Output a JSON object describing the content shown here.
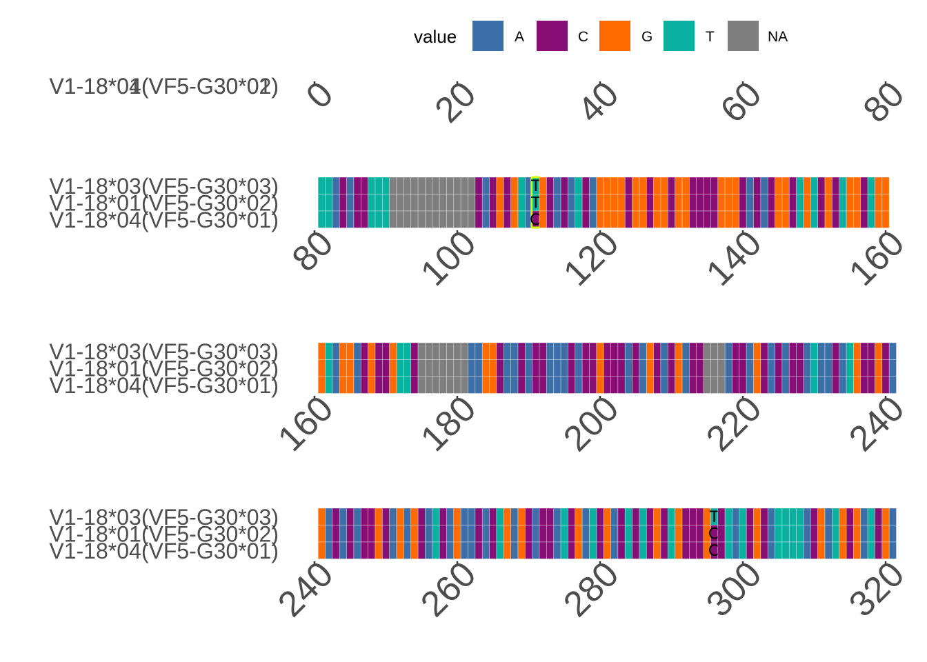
{
  "legend": {
    "title": "value",
    "items": [
      {
        "label": "A",
        "color": "#3C6EA8"
      },
      {
        "label": "C",
        "color": "#870E75"
      },
      {
        "label": "G",
        "color": "#FF6B00"
      },
      {
        "label": "T",
        "color": "#0AB1A0"
      },
      {
        "label": "NA",
        "color": "#7F7F7F"
      }
    ]
  },
  "chart_data": {
    "type": "heatmap",
    "rows": [
      "V1-18*03(VF5-G30*03)",
      "V1-18*01(VF5-G30*02)",
      "V1-18*04(VF5-G30*01)"
    ],
    "first_panel_rows": [
      "V1-18*01(VF5-G30*02)",
      "V1-18*04(VF5-G30*01)"
    ],
    "panels": [
      {
        "xlim": [
          0,
          80
        ],
        "ticks": [
          0,
          20,
          40,
          60,
          80
        ],
        "sequence": ""
      },
      {
        "xlim": [
          80,
          160
        ],
        "ticks": [
          80,
          100,
          120,
          140,
          160
        ],
        "sequence": "TTACACCTTTNNNNNNNNNNNNCACGCGTACGCACATCAGGGGCGGCGGCGGCCCCGGGCACACGGCTGTCGCTGGCTGG"
      },
      {
        "xlim": [
          160,
          240
        ],
        "ticks": [
          160,
          180,
          200,
          220,
          240
        ],
        "sequence": "GTAGGACGCCGTTCNNNNNNNAAGGCAACACCAAACACCGCCCACAGCACGACCNNNACCAGCACACCATAACATGCCGCA"
      },
      {
        "xlim": [
          240,
          320
        ],
        "ticks": [
          240,
          260,
          280,
          300,
          320
        ],
        "sequence": "GACACACCGCAGAGCATCAGAACACTGAGCACCATCGATCGACTCTCGCTGCCCGGCTATCGCATTTTACGATGCGATCGA"
      }
    ],
    "differences": [
      {
        "panel": 1,
        "position": 111,
        "bases": [
          "T",
          "T",
          "C"
        ],
        "highlight": "#CCFF00"
      },
      {
        "panel": 3,
        "position": 296,
        "bases": [
          "T",
          "C",
          "C"
        ]
      }
    ]
  }
}
